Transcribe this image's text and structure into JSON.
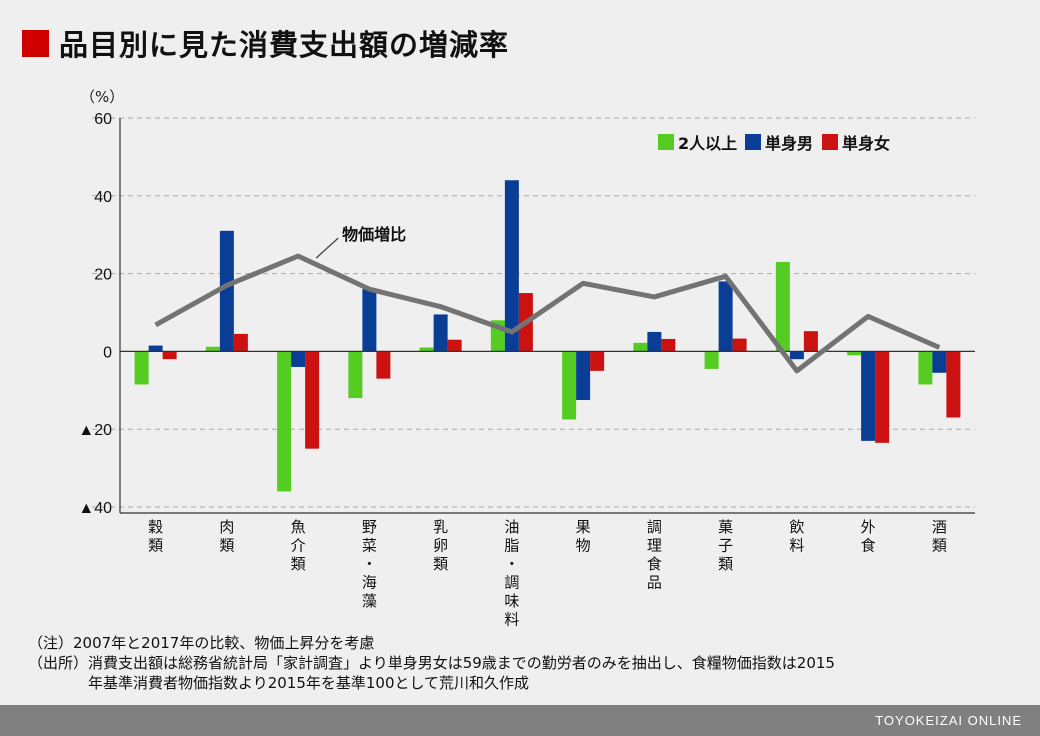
{
  "page": {
    "title": "品目別に見た消費支出額の増減率",
    "note1": "（注）2007年と2017年の比較、物価上昇分を考慮",
    "note2_line1": "（出所）消費支出額は総務省統計局「家計調査」より単身男女は59歳までの勤労者のみを抽出し、食糧物価指数は2015",
    "note2_line2": "年基準消費者物価指数より2015年を基準100として荒川和久作成",
    "footer": "TOYOKEIZAI ONLINE"
  },
  "chart_data": {
    "type": "bar",
    "title": "品目別に見た消費支出額の増減率",
    "unit_label": "（%）",
    "ylim": [
      -40,
      60
    ],
    "yticks": [
      60,
      40,
      20,
      0,
      -20,
      -40
    ],
    "ytick_labels": [
      "60",
      "40",
      "20",
      "0",
      "▲20",
      "▲40"
    ],
    "grid": true,
    "legend_position": "top-right",
    "categories": [
      "穀類",
      "肉類",
      "魚介類",
      "野菜・海藻",
      "乳卵類",
      "油脂・調味料",
      "果物",
      "調理食品",
      "菓子類",
      "飲料",
      "外食",
      "酒類"
    ],
    "series": [
      {
        "name": "2人以上",
        "color": "#55cc22",
        "values": [
          -8.5,
          1.2,
          -36,
          -12,
          1,
          8,
          -17.5,
          2.2,
          -4.5,
          23,
          -1,
          -8.5
        ]
      },
      {
        "name": "単身男",
        "color": "#0a3e96",
        "values": [
          1.5,
          31,
          -4,
          16,
          9.5,
          44,
          -12.5,
          5,
          18,
          -2,
          -23,
          -5.5
        ]
      },
      {
        "name": "単身女",
        "color": "#cc1111",
        "values": [
          -2,
          4.5,
          -25,
          -7,
          3,
          15,
          -5,
          3.2,
          3.3,
          5.2,
          -23.5,
          -17
        ]
      }
    ],
    "line": {
      "name": "物価増比",
      "color": "#737373",
      "values": [
        6.8,
        17,
        24.5,
        16,
        11.5,
        5,
        17.5,
        14,
        19.3,
        -5,
        9,
        1
      ]
    }
  }
}
